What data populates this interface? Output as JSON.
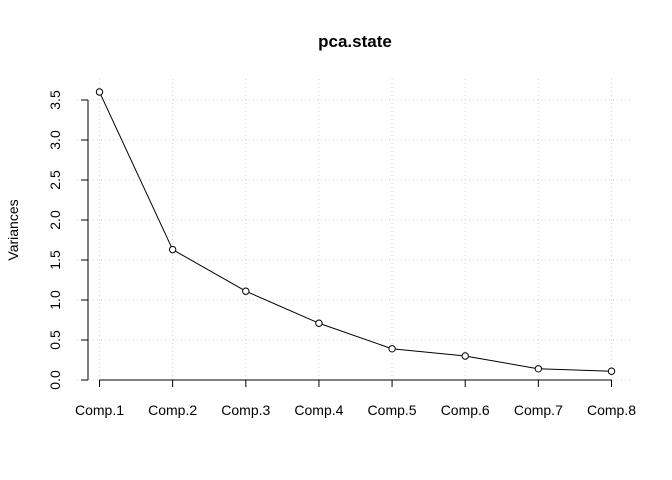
{
  "chart_data": {
    "type": "line",
    "title": "pca.state",
    "xlabel": "",
    "ylabel": "Variances",
    "categories": [
      "Comp.1",
      "Comp.2",
      "Comp.3",
      "Comp.4",
      "Comp.5",
      "Comp.6",
      "Comp.7",
      "Comp.8"
    ],
    "values": [
      3.6,
      1.63,
      1.11,
      0.71,
      0.39,
      0.3,
      0.14,
      0.11
    ],
    "ylim": [
      0,
      3.5
    ],
    "yticks": [
      0.0,
      0.5,
      1.0,
      1.5,
      2.0,
      2.5,
      3.0,
      3.5
    ],
    "ytick_labels": [
      "0.0",
      "0.5",
      "1.0",
      "1.5",
      "2.0",
      "2.5",
      "3.0",
      "3.5"
    ],
    "grid": true,
    "legend": "none"
  }
}
